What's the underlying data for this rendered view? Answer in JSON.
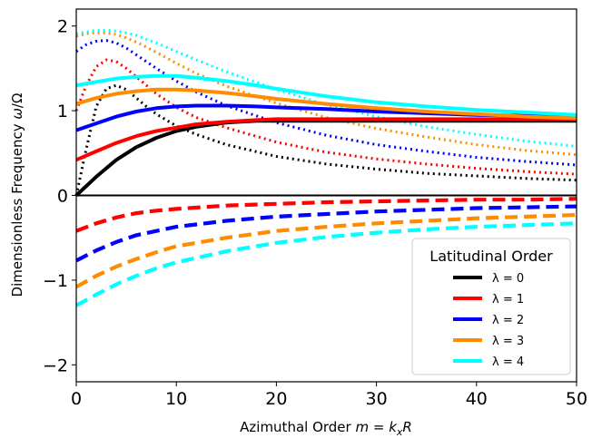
{
  "chart_data": {
    "type": "line",
    "xlabel": "Azimuthal Order m = k_xR",
    "ylabel": "Dimensionless Frequency ω/Ω",
    "xlim": [
      0,
      50
    ],
    "ylim": [
      -2.2,
      2.2
    ],
    "x_ticks": [
      "0",
      "10",
      "20",
      "30",
      "40",
      "50"
    ],
    "y_ticks": [
      "−2",
      "−1",
      "0",
      "1",
      "2"
    ],
    "zero_line": true,
    "grid": false,
    "legend": {
      "title": "Latitudinal Order",
      "placement": "lower-right",
      "entries": [
        "λ = 0",
        "λ = 1",
        "λ = 2",
        "λ = 3",
        "λ = 4"
      ]
    },
    "line_styles": {
      "solid": "Rossby-like branch",
      "dotted": "prograde branch",
      "dashed": "retrograde branch"
    },
    "series": [
      {
        "lambda": 0,
        "color": "#000000",
        "solid": {
          "x": [
            0,
            2,
            4,
            6,
            8,
            10,
            12,
            15,
            18,
            20,
            25,
            30,
            35,
            40,
            45,
            50
          ],
          "y": [
            0.0,
            0.22,
            0.42,
            0.57,
            0.68,
            0.76,
            0.81,
            0.86,
            0.88,
            0.88,
            0.88,
            0.88,
            0.88,
            0.88,
            0.88,
            0.88
          ]
        },
        "dotted": {
          "x": [
            0,
            1,
            2,
            3,
            4,
            5,
            6,
            7,
            8,
            10,
            12,
            15,
            20,
            25,
            30,
            35,
            40,
            45,
            50
          ],
          "y": [
            0.0,
            0.55,
            1.05,
            1.26,
            1.3,
            1.25,
            1.15,
            1.05,
            0.96,
            0.82,
            0.72,
            0.6,
            0.46,
            0.37,
            0.31,
            0.26,
            0.23,
            0.2,
            0.18
          ]
        }
      },
      {
        "lambda": 1,
        "color": "#ff0000",
        "solid": {
          "x": [
            0,
            2,
            4,
            6,
            8,
            10,
            12,
            15,
            18,
            20,
            25,
            30,
            35,
            40,
            45,
            50
          ],
          "y": [
            0.42,
            0.52,
            0.62,
            0.7,
            0.76,
            0.8,
            0.84,
            0.87,
            0.89,
            0.9,
            0.9,
            0.9,
            0.9,
            0.9,
            0.9,
            0.9
          ]
        },
        "dotted": {
          "x": [
            0,
            1,
            2,
            3,
            4,
            5,
            6,
            8,
            10,
            12,
            15,
            20,
            25,
            30,
            35,
            40,
            45,
            50
          ],
          "y": [
            1.0,
            1.3,
            1.52,
            1.6,
            1.58,
            1.5,
            1.4,
            1.2,
            1.04,
            0.92,
            0.8,
            0.63,
            0.51,
            0.43,
            0.37,
            0.32,
            0.28,
            0.25
          ]
        },
        "dashed": {
          "x": [
            0,
            2,
            4,
            6,
            8,
            10,
            15,
            20,
            25,
            30,
            35,
            40,
            45,
            50
          ],
          "y": [
            -0.42,
            -0.33,
            -0.26,
            -0.21,
            -0.18,
            -0.16,
            -0.12,
            -0.1,
            -0.08,
            -0.07,
            -0.06,
            -0.05,
            -0.05,
            -0.04
          ]
        }
      },
      {
        "lambda": 2,
        "color": "#0000ff",
        "solid": {
          "x": [
            0,
            2,
            4,
            6,
            8,
            10,
            12,
            15,
            18,
            20,
            25,
            30,
            35,
            40,
            45,
            50
          ],
          "y": [
            0.77,
            0.85,
            0.93,
            0.99,
            1.03,
            1.05,
            1.06,
            1.06,
            1.05,
            1.04,
            1.02,
            0.99,
            0.97,
            0.95,
            0.94,
            0.92
          ]
        },
        "dotted": {
          "x": [
            0,
            1,
            2,
            3,
            4,
            5,
            6,
            8,
            10,
            12,
            15,
            20,
            25,
            30,
            35,
            40,
            45,
            50
          ],
          "y": [
            1.7,
            1.78,
            1.82,
            1.83,
            1.8,
            1.74,
            1.66,
            1.5,
            1.35,
            1.22,
            1.06,
            0.86,
            0.71,
            0.6,
            0.52,
            0.45,
            0.4,
            0.36
          ]
        },
        "dashed": {
          "x": [
            0,
            2,
            4,
            6,
            8,
            10,
            15,
            20,
            25,
            30,
            35,
            40,
            45,
            50
          ],
          "y": [
            -0.77,
            -0.65,
            -0.55,
            -0.47,
            -0.42,
            -0.37,
            -0.3,
            -0.25,
            -0.22,
            -0.19,
            -0.17,
            -0.15,
            -0.14,
            -0.13
          ]
        }
      },
      {
        "lambda": 3,
        "color": "#ff8c00",
        "solid": {
          "x": [
            0,
            2,
            4,
            6,
            8,
            10,
            12,
            15,
            18,
            20,
            25,
            30,
            35,
            40,
            45,
            50
          ],
          "y": [
            1.08,
            1.15,
            1.2,
            1.23,
            1.25,
            1.25,
            1.24,
            1.21,
            1.17,
            1.14,
            1.08,
            1.03,
            0.99,
            0.96,
            0.93,
            0.91
          ]
        },
        "dotted": {
          "x": [
            0,
            1,
            2,
            3,
            4,
            5,
            6,
            8,
            10,
            12,
            15,
            20,
            25,
            30,
            35,
            40,
            45,
            50
          ],
          "y": [
            1.88,
            1.91,
            1.92,
            1.92,
            1.9,
            1.86,
            1.81,
            1.69,
            1.56,
            1.44,
            1.29,
            1.09,
            0.92,
            0.79,
            0.69,
            0.6,
            0.53,
            0.48
          ]
        },
        "dashed": {
          "x": [
            0,
            2,
            4,
            6,
            8,
            10,
            15,
            20,
            25,
            30,
            35,
            40,
            45,
            50
          ],
          "y": [
            -1.08,
            -0.95,
            -0.84,
            -0.75,
            -0.67,
            -0.6,
            -0.5,
            -0.42,
            -0.37,
            -0.33,
            -0.3,
            -0.27,
            -0.25,
            -0.23
          ]
        }
      },
      {
        "lambda": 4,
        "color": "#00ffff",
        "solid": {
          "x": [
            0,
            2,
            4,
            6,
            8,
            10,
            12,
            15,
            18,
            20,
            25,
            30,
            35,
            40,
            45,
            50
          ],
          "y": [
            1.3,
            1.34,
            1.38,
            1.4,
            1.41,
            1.41,
            1.39,
            1.35,
            1.3,
            1.26,
            1.17,
            1.1,
            1.05,
            1.01,
            0.98,
            0.95
          ]
        },
        "dotted": {
          "x": [
            0,
            1,
            2,
            3,
            4,
            5,
            6,
            8,
            10,
            12,
            15,
            20,
            25,
            30,
            35,
            40,
            45,
            50
          ],
          "y": [
            1.91,
            1.93,
            1.95,
            1.95,
            1.94,
            1.92,
            1.89,
            1.8,
            1.7,
            1.6,
            1.46,
            1.25,
            1.07,
            0.93,
            0.81,
            0.72,
            0.64,
            0.58
          ]
        },
        "dashed": {
          "x": [
            0,
            2,
            4,
            6,
            8,
            10,
            15,
            20,
            25,
            30,
            35,
            40,
            45,
            50
          ],
          "y": [
            -1.3,
            -1.17,
            -1.05,
            -0.95,
            -0.86,
            -0.79,
            -0.66,
            -0.56,
            -0.49,
            -0.44,
            -0.4,
            -0.37,
            -0.35,
            -0.33
          ]
        }
      }
    ]
  }
}
